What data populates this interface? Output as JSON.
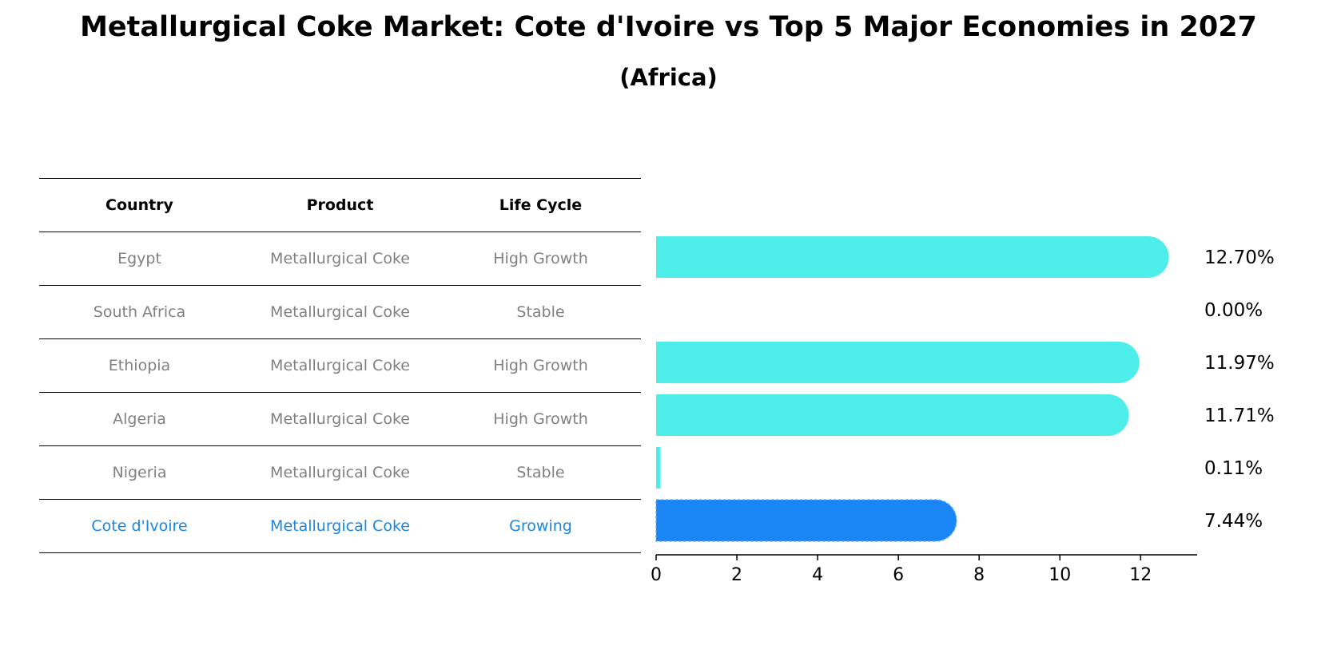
{
  "title": "Metallurgical Coke Market: Cote d'Ivoire vs Top 5 Major Economies in 2027",
  "subtitle": "(Africa)",
  "table": {
    "headers": [
      "Country",
      "Product",
      "Life Cycle"
    ],
    "rows": [
      {
        "country": "Egypt",
        "product": "Metallurgical Coke",
        "life_cycle": "High Growth"
      },
      {
        "country": "South Africa",
        "product": "Metallurgical Coke",
        "life_cycle": "Stable"
      },
      {
        "country": "Ethiopia",
        "product": "Metallurgical Coke",
        "life_cycle": "High Growth"
      },
      {
        "country": "Algeria",
        "product": "Metallurgical Coke",
        "life_cycle": "High Growth"
      },
      {
        "country": "Nigeria",
        "product": "Metallurgical Coke",
        "life_cycle": "Stable"
      },
      {
        "country": "Cote d'Ivoire",
        "product": "Metallurgical Coke",
        "life_cycle": "Growing"
      }
    ]
  },
  "colors": {
    "bar": "#4deeea",
    "highlight_bar": "#1a86f5",
    "highlight_text": "#1a86e0",
    "muted_text": "#808080"
  },
  "chart_data": {
    "type": "bar",
    "orientation": "horizontal",
    "categories": [
      "Egypt",
      "South Africa",
      "Ethiopia",
      "Algeria",
      "Nigeria",
      "Cote d'Ivoire"
    ],
    "values": [
      12.7,
      0.0,
      11.97,
      11.71,
      0.11,
      7.44
    ],
    "labels": [
      "12.70%",
      "0.00%",
      "11.97%",
      "11.71%",
      "0.11%",
      "7.44%"
    ],
    "highlight": "Cote d'Ivoire",
    "xticks": [
      0,
      2,
      4,
      6,
      8,
      10,
      12
    ],
    "xlim": [
      0,
      13.4
    ]
  }
}
